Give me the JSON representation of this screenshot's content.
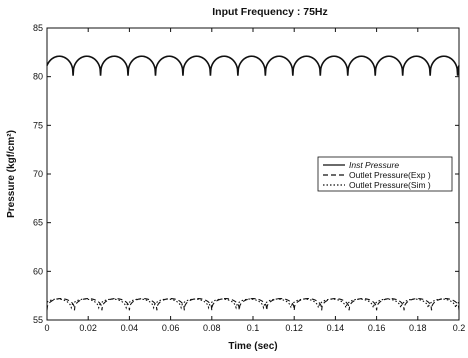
{
  "chart_data": {
    "type": "line",
    "title": "Input Frequency : 75Hz",
    "xlabel": "Time (sec)",
    "ylabel": "Pressure (kgf/cm²)",
    "xlim": [
      0,
      0.2
    ],
    "ylim": [
      55,
      85
    ],
    "x_ticks": [
      0,
      0.02,
      0.04,
      0.06,
      0.08,
      0.1,
      0.12,
      0.14,
      0.16,
      0.18,
      0.2
    ],
    "x_tick_labels": [
      "0",
      "0.02",
      "0.04",
      "0.06",
      "0.08",
      "0.1",
      "0.12",
      "0.14",
      "0.16",
      "0.18",
      "0.2"
    ],
    "y_ticks": [
      55,
      60,
      65,
      70,
      75,
      80,
      85
    ],
    "y_tick_labels": [
      "55",
      "60",
      "65",
      "70",
      "75",
      "80",
      "85"
    ],
    "grid": false,
    "legend_position": "right-middle",
    "frequency_hz": 75,
    "series": [
      {
        "name": "Inst Pressure",
        "style": "solid",
        "color": "#111111",
        "mean": 81.1,
        "amplitude": 1.0
      },
      {
        "name": "Outlet Pressure(Exp )",
        "style": "dashed",
        "color": "#111111",
        "mean": 56.6,
        "amplitude": 0.6
      },
      {
        "name": "Outlet Pressure(Sim )",
        "style": "dotted",
        "color": "#111111",
        "mean": 56.6,
        "amplitude": 0.55
      }
    ]
  }
}
